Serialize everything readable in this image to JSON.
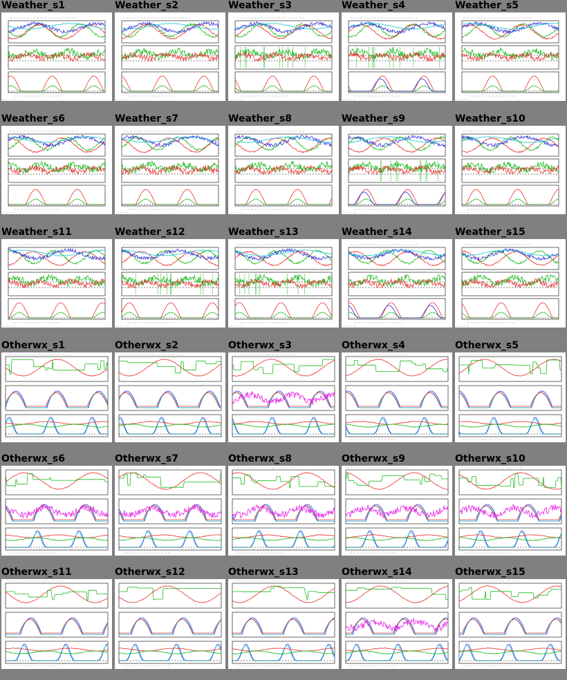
{
  "page": {
    "background": "#808080"
  },
  "colors": {
    "red": "#e8302a",
    "green": "#18b818",
    "blue": "#2a2ad8",
    "cyan": "#18c8d8",
    "magenta": "#e818e8",
    "frame": "#000000"
  },
  "sections": [
    {
      "kind": "weather",
      "items": [
        {
          "title": "Weather_s1"
        },
        {
          "title": "Weather_s2"
        },
        {
          "title": "Weather_s3"
        },
        {
          "title": "Weather_s4"
        },
        {
          "title": "Weather_s5"
        },
        {
          "title": "Weather_s6"
        },
        {
          "title": "Weather_s7"
        },
        {
          "title": "Weather_s8"
        },
        {
          "title": "Weather_s9"
        },
        {
          "title": "Weather_s10"
        },
        {
          "title": "Weather_s11"
        },
        {
          "title": "Weather_s12"
        },
        {
          "title": "Weather_s13"
        },
        {
          "title": "Weather_s14"
        },
        {
          "title": "Weather_s15"
        }
      ]
    },
    {
      "kind": "otherwx",
      "items": [
        {
          "title": "Otherwx_s1"
        },
        {
          "title": "Otherwx_s2"
        },
        {
          "title": "Otherwx_s3"
        },
        {
          "title": "Otherwx_s4"
        },
        {
          "title": "Otherwx_s5"
        },
        {
          "title": "Otherwx_s6"
        },
        {
          "title": "Otherwx_s7"
        },
        {
          "title": "Otherwx_s8"
        },
        {
          "title": "Otherwx_s9"
        },
        {
          "title": "Otherwx_s10"
        },
        {
          "title": "Otherwx_s11"
        },
        {
          "title": "Otherwx_s12"
        },
        {
          "title": "Otherwx_s13"
        },
        {
          "title": "Otherwx_s14"
        },
        {
          "title": "Otherwx_s15"
        }
      ]
    }
  ]
}
